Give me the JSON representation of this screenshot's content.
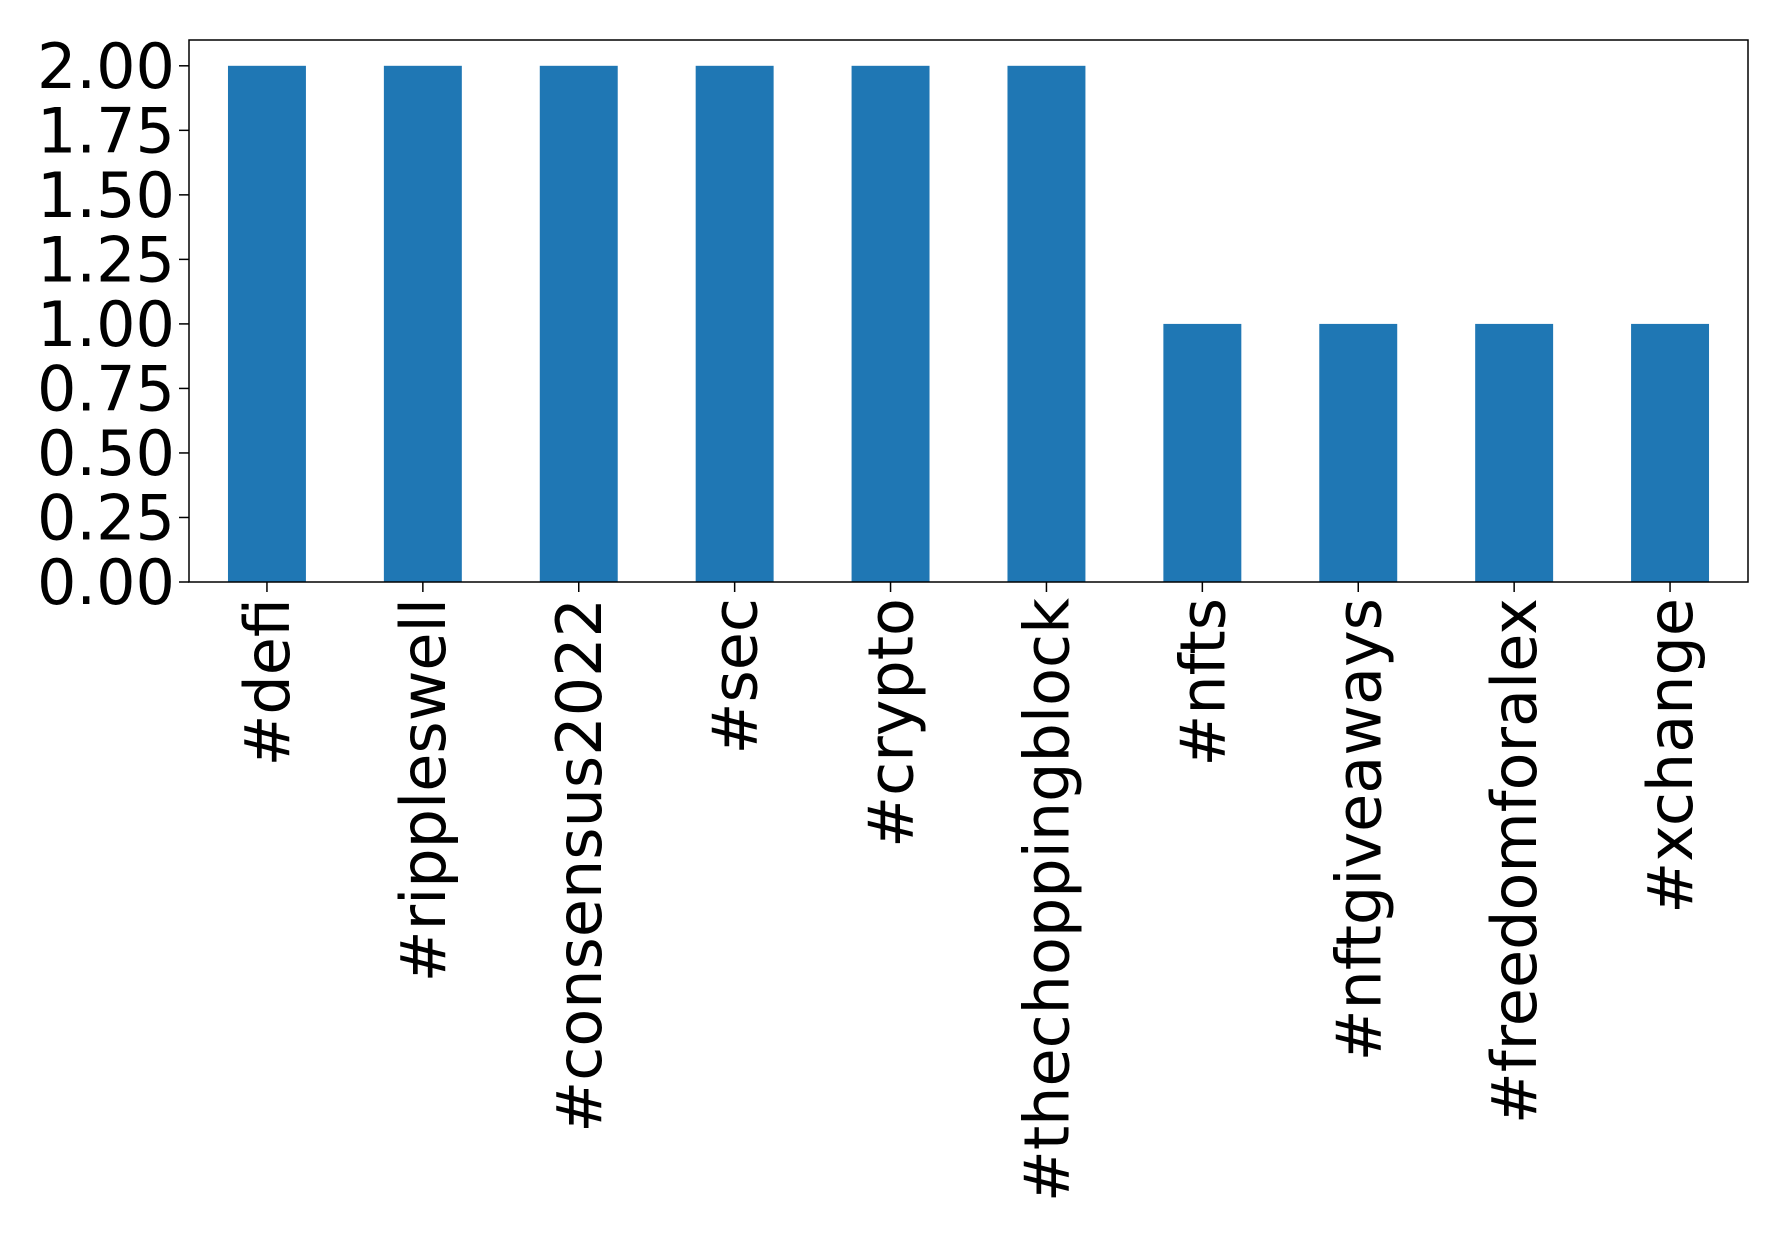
{
  "chart_data": {
    "type": "bar",
    "categories": [
      "#defi",
      "#rippleswell",
      "#consensus2022",
      "#sec",
      "#crypto",
      "#thechoppingblock",
      "#nfts",
      "#nftgiveaways",
      "#freedomforalex",
      "#xchange"
    ],
    "values": [
      2,
      2,
      2,
      2,
      2,
      2,
      1,
      1,
      1,
      1
    ],
    "color": "#1f77b4",
    "ylim": [
      0,
      2.1
    ],
    "yticks": [
      {
        "value": 0,
        "label": "0.00"
      },
      {
        "value": 0.25,
        "label": "0.25"
      },
      {
        "value": 0.5,
        "label": "0.50"
      },
      {
        "value": 0.75,
        "label": "0.75"
      },
      {
        "value": 1,
        "label": "1.00"
      },
      {
        "value": 1.25,
        "label": "1.25"
      },
      {
        "value": 1.5,
        "label": "1.50"
      },
      {
        "value": 1.75,
        "label": "1.75"
      },
      {
        "value": 2,
        "label": "2.00"
      }
    ],
    "grid": false
  }
}
